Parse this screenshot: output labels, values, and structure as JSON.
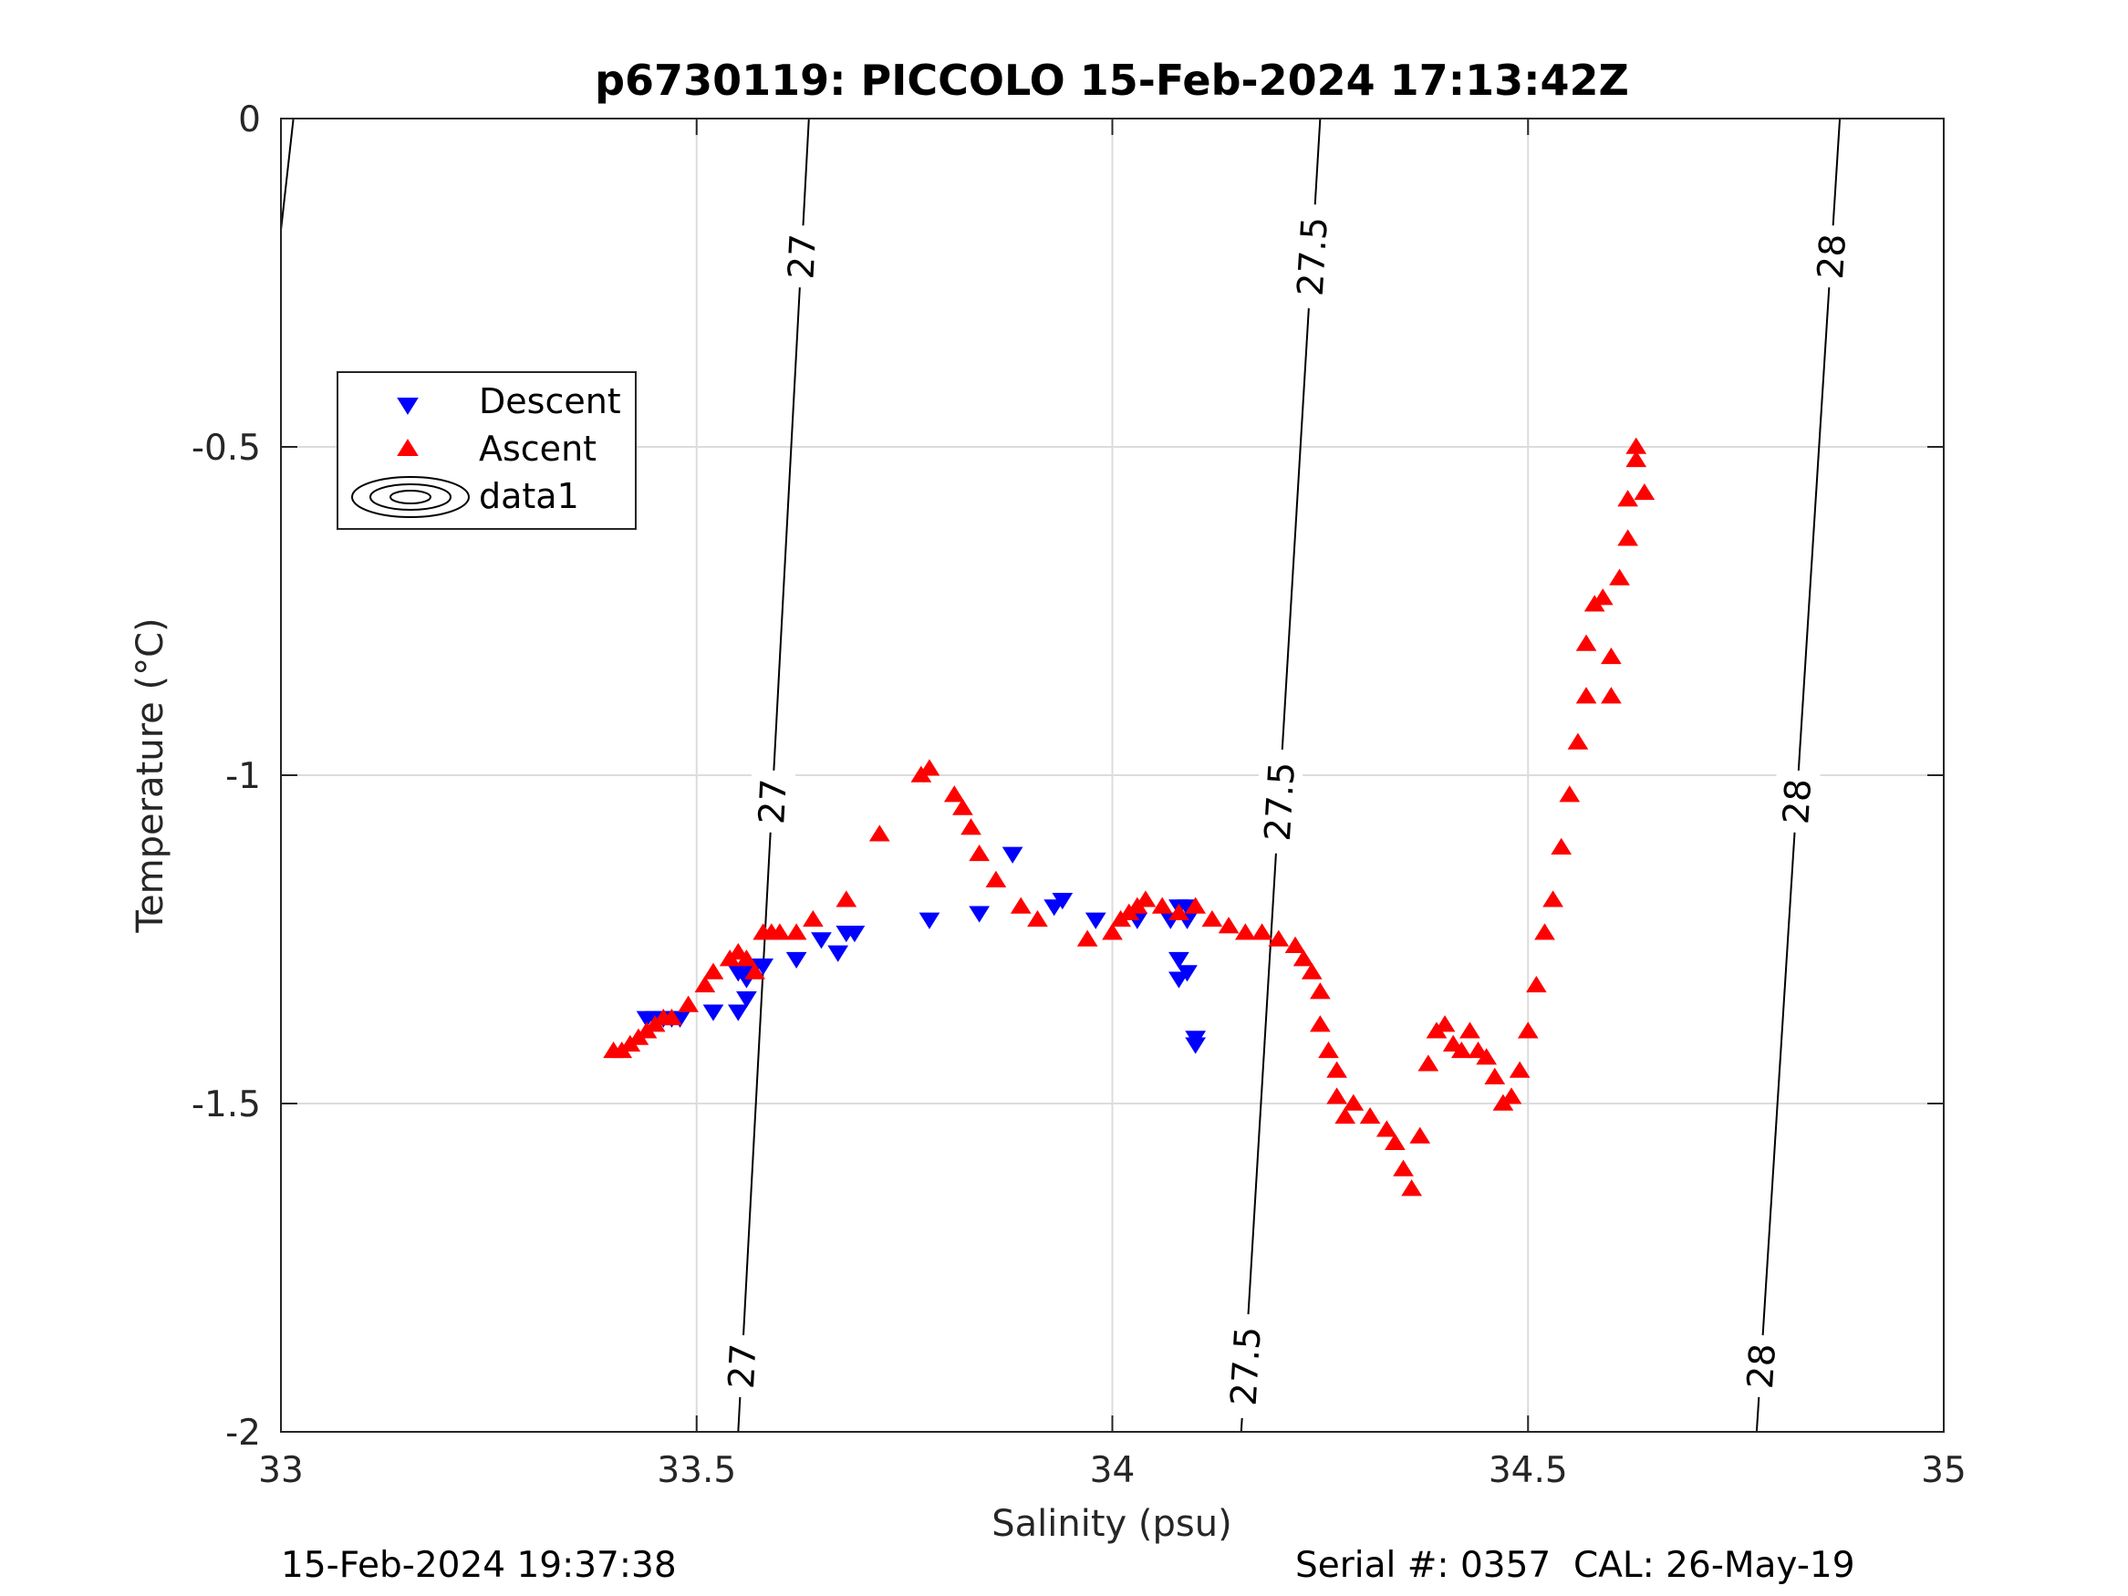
{
  "chart_data": {
    "type": "scatter",
    "title": "p6730119: PICCOLO 15-Feb-2024 17:13:42Z",
    "xlabel": "Salinity (psu)",
    "ylabel": "Temperature (°C)",
    "xlim": [
      33,
      35
    ],
    "ylim": [
      -2,
      0
    ],
    "xticks": [
      33,
      33.5,
      34,
      34.5,
      35
    ],
    "xtick_labels": [
      "33",
      "33.5",
      "34",
      "34.5",
      "35"
    ],
    "yticks": [
      0,
      -0.5,
      -1,
      -1.5,
      -2
    ],
    "ytick_labels": [
      "0",
      "-0.5",
      "-1",
      "-1.5",
      "-2"
    ],
    "grid": true,
    "legend_position": "upper-left",
    "legend": [
      "Descent",
      "Ascent",
      "data1"
    ],
    "colors": {
      "descent": "#0000ff",
      "ascent": "#ff0000",
      "contour": "#000000",
      "grid": "#dcdcdc"
    },
    "series": [
      {
        "name": "Descent",
        "marker": "triangle-down",
        "color": "#0000ff",
        "points": [
          [
            33.44,
            -1.37
          ],
          [
            33.45,
            -1.37
          ],
          [
            33.46,
            -1.37
          ],
          [
            33.47,
            -1.37
          ],
          [
            33.48,
            -1.37
          ],
          [
            33.52,
            -1.36
          ],
          [
            33.55,
            -1.36
          ],
          [
            33.55,
            -1.3
          ],
          [
            33.56,
            -1.3
          ],
          [
            33.56,
            -1.31
          ],
          [
            33.57,
            -1.29
          ],
          [
            33.58,
            -1.29
          ],
          [
            33.56,
            -1.34
          ],
          [
            33.62,
            -1.28
          ],
          [
            33.65,
            -1.25
          ],
          [
            33.67,
            -1.27
          ],
          [
            33.68,
            -1.24
          ],
          [
            33.69,
            -1.24
          ],
          [
            33.78,
            -1.22
          ],
          [
            33.84,
            -1.21
          ],
          [
            33.88,
            -1.12
          ],
          [
            33.93,
            -1.2
          ],
          [
            33.94,
            -1.19
          ],
          [
            33.98,
            -1.22
          ],
          [
            34.03,
            -1.22
          ],
          [
            34.07,
            -1.22
          ],
          [
            34.08,
            -1.28
          ],
          [
            34.08,
            -1.31
          ],
          [
            34.09,
            -1.3
          ],
          [
            34.1,
            -1.4
          ],
          [
            34.1,
            -1.41
          ],
          [
            34.09,
            -1.2
          ],
          [
            34.09,
            -1.22
          ],
          [
            34.08,
            -1.2
          ]
        ]
      },
      {
        "name": "Ascent",
        "marker": "triangle-up",
        "color": "#ff0000",
        "points": [
          [
            33.4,
            -1.42
          ],
          [
            33.41,
            -1.42
          ],
          [
            33.42,
            -1.41
          ],
          [
            33.43,
            -1.4
          ],
          [
            33.44,
            -1.39
          ],
          [
            33.45,
            -1.38
          ],
          [
            33.46,
            -1.37
          ],
          [
            33.47,
            -1.37
          ],
          [
            33.49,
            -1.35
          ],
          [
            33.51,
            -1.32
          ],
          [
            33.52,
            -1.3
          ],
          [
            33.54,
            -1.28
          ],
          [
            33.55,
            -1.27
          ],
          [
            33.56,
            -1.28
          ],
          [
            33.57,
            -1.3
          ],
          [
            33.58,
            -1.24
          ],
          [
            33.59,
            -1.24
          ],
          [
            33.6,
            -1.24
          ],
          [
            33.62,
            -1.24
          ],
          [
            33.64,
            -1.22
          ],
          [
            33.68,
            -1.19
          ],
          [
            33.72,
            -1.09
          ],
          [
            33.77,
            -1.0
          ],
          [
            33.78,
            -0.99
          ],
          [
            33.81,
            -1.03
          ],
          [
            33.82,
            -1.05
          ],
          [
            33.83,
            -1.08
          ],
          [
            33.84,
            -1.12
          ],
          [
            33.86,
            -1.16
          ],
          [
            33.89,
            -1.2
          ],
          [
            33.91,
            -1.22
          ],
          [
            33.97,
            -1.25
          ],
          [
            34.0,
            -1.24
          ],
          [
            34.01,
            -1.22
          ],
          [
            34.02,
            -1.21
          ],
          [
            34.03,
            -1.2
          ],
          [
            34.04,
            -1.19
          ],
          [
            34.06,
            -1.2
          ],
          [
            34.08,
            -1.21
          ],
          [
            34.1,
            -1.2
          ],
          [
            34.12,
            -1.22
          ],
          [
            34.14,
            -1.23
          ],
          [
            34.16,
            -1.24
          ],
          [
            34.18,
            -1.24
          ],
          [
            34.2,
            -1.25
          ],
          [
            34.22,
            -1.26
          ],
          [
            34.23,
            -1.28
          ],
          [
            34.24,
            -1.3
          ],
          [
            34.25,
            -1.33
          ],
          [
            34.25,
            -1.38
          ],
          [
            34.26,
            -1.42
          ],
          [
            34.27,
            -1.45
          ],
          [
            34.27,
            -1.49
          ],
          [
            34.28,
            -1.52
          ],
          [
            34.29,
            -1.5
          ],
          [
            34.31,
            -1.52
          ],
          [
            34.33,
            -1.54
          ],
          [
            34.34,
            -1.56
          ],
          [
            34.35,
            -1.6
          ],
          [
            34.36,
            -1.63
          ],
          [
            34.37,
            -1.55
          ],
          [
            34.38,
            -1.44
          ],
          [
            34.39,
            -1.39
          ],
          [
            34.4,
            -1.38
          ],
          [
            34.41,
            -1.41
          ],
          [
            34.42,
            -1.42
          ],
          [
            34.43,
            -1.39
          ],
          [
            34.44,
            -1.42
          ],
          [
            34.45,
            -1.43
          ],
          [
            34.46,
            -1.46
          ],
          [
            34.47,
            -1.5
          ],
          [
            34.48,
            -1.49
          ],
          [
            34.49,
            -1.45
          ],
          [
            34.5,
            -1.39
          ],
          [
            34.51,
            -1.32
          ],
          [
            34.52,
            -1.24
          ],
          [
            34.53,
            -1.19
          ],
          [
            34.54,
            -1.11
          ],
          [
            34.55,
            -1.03
          ],
          [
            34.56,
            -0.95
          ],
          [
            34.57,
            -0.88
          ],
          [
            34.57,
            -0.8
          ],
          [
            34.58,
            -0.74
          ],
          [
            34.59,
            -0.73
          ],
          [
            34.6,
            -0.82
          ],
          [
            34.6,
            -0.88
          ],
          [
            34.61,
            -0.7
          ],
          [
            34.62,
            -0.64
          ],
          [
            34.62,
            -0.58
          ],
          [
            34.63,
            -0.52
          ],
          [
            34.63,
            -0.5
          ],
          [
            34.64,
            -0.57
          ]
        ]
      }
    ],
    "contours": {
      "name": "data1",
      "lines": [
        {
          "points": [
            [
              33.0,
              -0.17
            ],
            [
              33.015,
              0.0
            ]
          ]
        },
        {
          "label": "27",
          "points": [
            [
              33.55,
              -2.0
            ],
            [
              33.635,
              0.0
            ]
          ],
          "label_y": [
            -1.9,
            -1.04,
            -0.21
          ]
        },
        {
          "label": "27.5",
          "points": [
            [
              34.155,
              -2.0
            ],
            [
              34.25,
              0.0
            ]
          ],
          "label_y": [
            -1.9,
            -1.04,
            -0.21
          ]
        },
        {
          "label": "28",
          "points": [
            [
              34.775,
              -2.0
            ],
            [
              34.875,
              0.0
            ]
          ],
          "label_y": [
            -1.9,
            -1.04,
            -0.21
          ]
        }
      ]
    }
  },
  "footer": {
    "left": "15-Feb-2024 19:37:38",
    "right": "Serial #: 0357  CAL: 26-May-19"
  }
}
